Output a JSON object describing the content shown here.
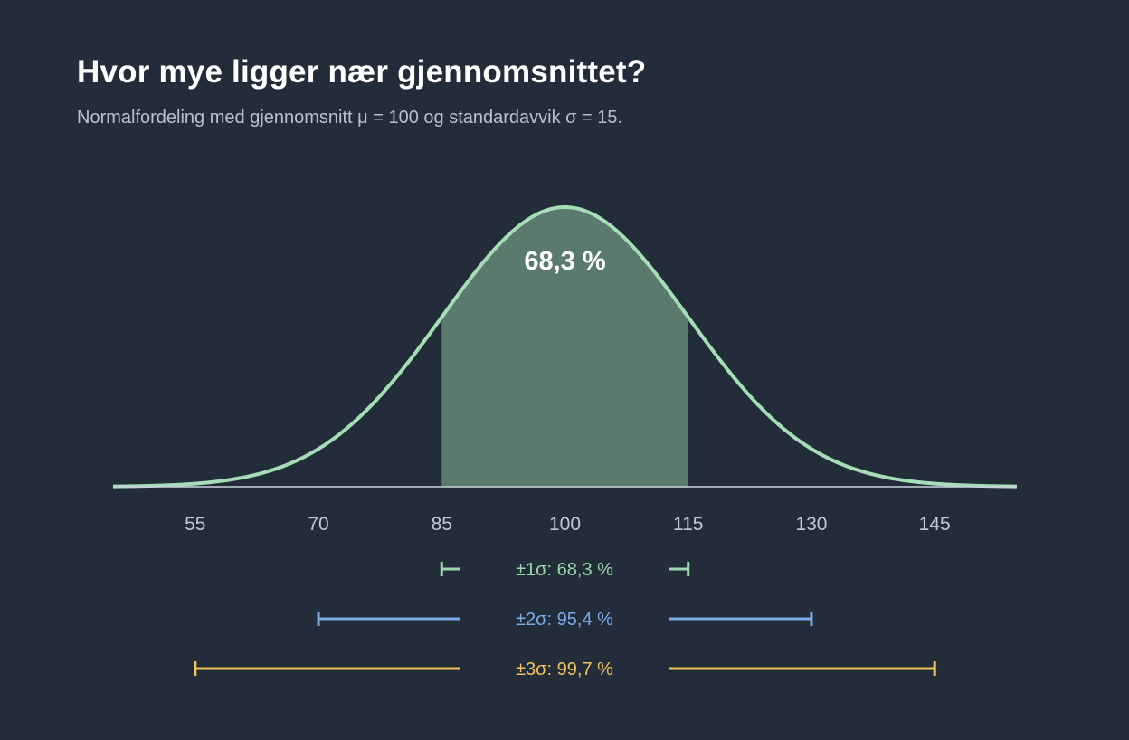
{
  "title": "Hvor mye ligger nær gjennomsnittet?",
  "subtitle": "Normalfordeling med gjennomsnitt μ = 100 og standardavvik σ = 15.",
  "chart_data": {
    "type": "area",
    "distribution": "normal",
    "mean": 100,
    "sd": 15,
    "xlim": [
      45,
      155
    ],
    "xticks": [
      55,
      70,
      85,
      100,
      115,
      130,
      145
    ],
    "shaded_range": [
      85,
      115
    ],
    "shaded_label": "68,3 %",
    "curve_color": "#a6dcb8",
    "shade_color": "#5b7a6e",
    "bands": [
      {
        "label": "±1σ: 68,3 %",
        "range": [
          85,
          115
        ],
        "color": "#9fd6b2"
      },
      {
        "label": "±2σ: 95,4 %",
        "range": [
          70,
          130
        ],
        "color": "#7aacea"
      },
      {
        "label": "±3σ: 99,7 %",
        "range": [
          55,
          145
        ],
        "color": "#f2c35c"
      }
    ]
  }
}
